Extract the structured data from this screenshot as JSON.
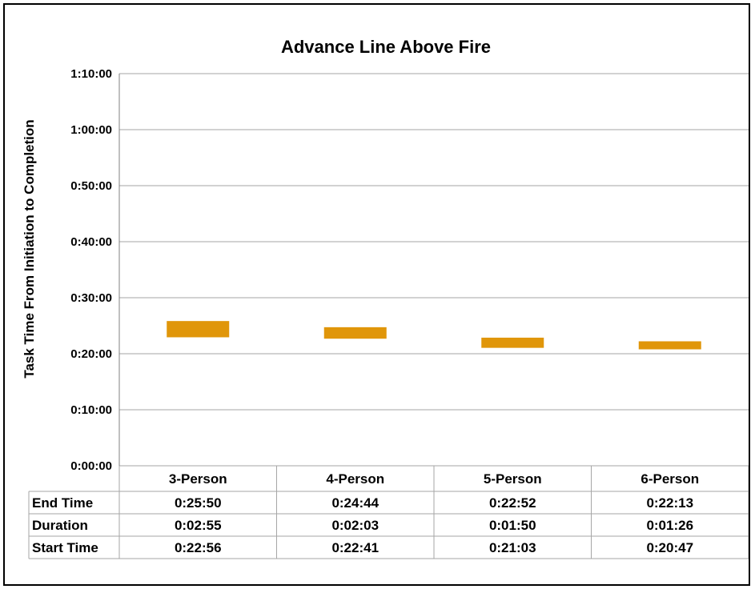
{
  "chart_data": {
    "type": "bar",
    "subtype": "floating-range",
    "title": "Advance Line Above Fire",
    "xlabel": "",
    "ylabel": "Task Time From Initiation to Completion",
    "ylim_seconds": [
      0,
      4200
    ],
    "yticks": [
      {
        "seconds": 0,
        "label": "0:00:00"
      },
      {
        "seconds": 600,
        "label": "0:10:00"
      },
      {
        "seconds": 1200,
        "label": "0:20:00"
      },
      {
        "seconds": 1800,
        "label": "0:30:00"
      },
      {
        "seconds": 2400,
        "label": "0:40:00"
      },
      {
        "seconds": 3000,
        "label": "0:50:00"
      },
      {
        "seconds": 3600,
        "label": "1:00:00"
      },
      {
        "seconds": 4200,
        "label": "1:10:00"
      }
    ],
    "grid": true,
    "bar_color": "#E0960A",
    "categories": [
      "3-Person",
      "4-Person",
      "5-Person",
      "6-Person"
    ],
    "start_seconds": [
      1376,
      1361,
      1263,
      1247
    ],
    "end_seconds": [
      1550,
      1484,
      1372,
      1333
    ],
    "table": {
      "rows": [
        {
          "label": "End Time",
          "values": [
            "0:25:50",
            "0:24:44",
            "0:22:52",
            "0:22:13"
          ]
        },
        {
          "label": "Duration",
          "values": [
            "0:02:55",
            "0:02:03",
            "0:01:50",
            "0:01:26"
          ]
        },
        {
          "label": "Start Time",
          "values": [
            "0:22:56",
            "0:22:41",
            "0:21:03",
            "0:20:47"
          ]
        }
      ]
    }
  }
}
